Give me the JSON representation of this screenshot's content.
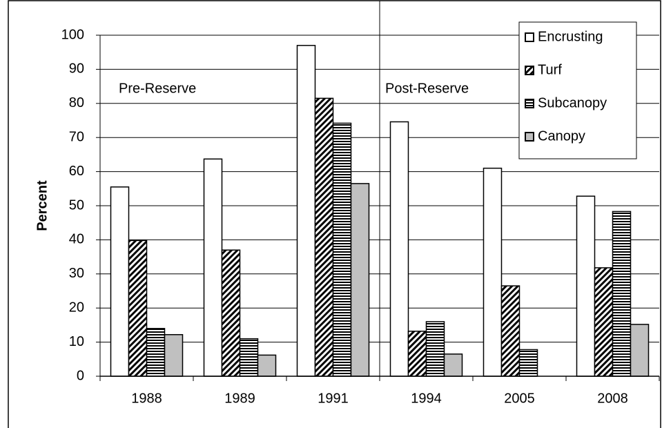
{
  "chart_data": {
    "type": "bar",
    "y_label": "Percent",
    "annotations": [
      "Pre-Reserve",
      "Post-Reserve"
    ],
    "categories": [
      "1988",
      "1989",
      "1991",
      "1994",
      "2005",
      "2008"
    ],
    "series": [
      {
        "name": "Encrusting",
        "color": "#ffffff",
        "pattern": null,
        "values": [
          55.5,
          63.7,
          97,
          74.6,
          61,
          52.8
        ]
      },
      {
        "name": "Turf",
        "color": "#ffffff",
        "pattern": "diagonal",
        "values": [
          39.8,
          37,
          81.5,
          13.2,
          26.5,
          31.8
        ]
      },
      {
        "name": "Subcanopy",
        "color": "#ffffff",
        "pattern": "horizontal",
        "values": [
          14,
          11,
          74.2,
          16,
          7.8,
          48.3
        ]
      },
      {
        "name": "Canopy",
        "color": "#c0c0c0",
        "pattern": null,
        "values": [
          12.2,
          6.2,
          56.5,
          6.5,
          null,
          15.2
        ]
      }
    ],
    "ylim": [
      0,
      100
    ],
    "yticks": [
      0,
      10,
      20,
      30,
      40,
      50,
      60,
      70,
      80,
      90,
      100
    ],
    "grid": true,
    "legend": "top-right"
  }
}
